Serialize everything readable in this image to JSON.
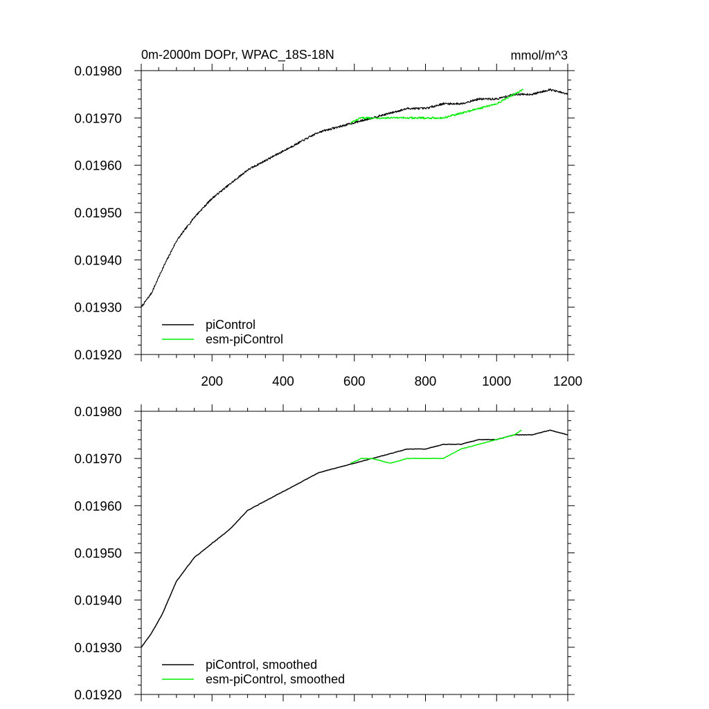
{
  "figure": {
    "title": "0m-2000m DOPr, WPAC_18S-18N",
    "units": "mmol/m^3"
  },
  "colors": {
    "piControl": "#000000",
    "esm": "#00ee00"
  },
  "chart_data": [
    {
      "type": "line",
      "name": "raw",
      "title": "0m-2000m DOPr, WPAC_18S-18N",
      "units_label": "mmol/m^3",
      "xlim": [
        1,
        1200
      ],
      "ylim": [
        0.0192,
        0.0198
      ],
      "x_ticks": [
        200,
        400,
        600,
        800,
        1000,
        1200
      ],
      "x_tick_labels": [
        "200",
        "400",
        "600",
        "800",
        "1000",
        "1200"
      ],
      "y_ticks": [
        0.0192,
        0.0193,
        0.0194,
        0.0195,
        0.0196,
        0.0197,
        0.0198
      ],
      "y_tick_labels": [
        "0.01920",
        "0.01930",
        "0.01940",
        "0.01950",
        "0.01960",
        "0.01970",
        "0.01980"
      ],
      "legend": {
        "position": "bottom-left",
        "entries": [
          "piControl",
          "esm-piControl"
        ]
      },
      "noise": {
        "piControl": 2.2e-06,
        "esm": 2.2e-06
      },
      "series": [
        {
          "name": "piControl",
          "color": "#000000",
          "x": [
            1,
            30,
            60,
            100,
            150,
            200,
            250,
            300,
            350,
            400,
            450,
            500,
            550,
            600,
            650,
            700,
            750,
            800,
            850,
            900,
            950,
            1000,
            1050,
            1100,
            1150,
            1200
          ],
          "y": [
            0.0193,
            0.01933,
            0.01938,
            0.01944,
            0.01949,
            0.01953,
            0.01956,
            0.01959,
            0.01961,
            0.01963,
            0.01965,
            0.01967,
            0.01968,
            0.01969,
            0.0197,
            0.01971,
            0.01972,
            0.01972,
            0.01973,
            0.01973,
            0.01974,
            0.01974,
            0.01975,
            0.01975,
            0.01976,
            0.01975
          ]
        },
        {
          "name": "esm-piControl",
          "color": "#00ee00",
          "x": [
            590,
            620,
            650,
            700,
            750,
            800,
            850,
            900,
            950,
            1000,
            1050,
            1075
          ],
          "y": [
            0.01969,
            0.0197,
            0.0197,
            0.0197,
            0.0197,
            0.0197,
            0.0197,
            0.01971,
            0.01972,
            0.01973,
            0.01975,
            0.01976
          ]
        }
      ]
    },
    {
      "type": "line",
      "name": "smoothed",
      "xlim": [
        1,
        1200
      ],
      "ylim": [
        0.0192,
        0.0198
      ],
      "x_ticks": [
        200,
        400,
        600,
        800,
        1000,
        1200
      ],
      "y_ticks": [
        0.0192,
        0.0193,
        0.0194,
        0.0195,
        0.0196,
        0.0197,
        0.0198
      ],
      "y_tick_labels": [
        "0.01920",
        "0.01930",
        "0.01940",
        "0.01950",
        "0.01960",
        "0.01970",
        "0.01980"
      ],
      "legend": {
        "position": "bottom-left",
        "entries": [
          "piControl, smoothed",
          "esm-piControl, smoothed"
        ]
      },
      "noise": {
        "piControl": 4.5e-07,
        "esm": 3.5e-07
      },
      "series": [
        {
          "name": "piControl, smoothed",
          "color": "#000000",
          "x": [
            1,
            30,
            60,
            100,
            150,
            200,
            250,
            300,
            350,
            400,
            450,
            500,
            550,
            600,
            650,
            700,
            750,
            800,
            850,
            900,
            950,
            1000,
            1050,
            1100,
            1150,
            1200
          ],
          "y": [
            0.0193,
            0.01933,
            0.01937,
            0.01944,
            0.01949,
            0.01952,
            0.01955,
            0.01959,
            0.01961,
            0.01963,
            0.01965,
            0.01967,
            0.01968,
            0.01969,
            0.0197,
            0.01971,
            0.01972,
            0.01972,
            0.01973,
            0.01973,
            0.01974,
            0.01974,
            0.01975,
            0.01975,
            0.01976,
            0.01975
          ]
        },
        {
          "name": "esm-piControl, smoothed",
          "color": "#00ee00",
          "x": [
            590,
            620,
            650,
            700,
            750,
            800,
            850,
            900,
            950,
            1000,
            1050,
            1070
          ],
          "y": [
            0.01969,
            0.0197,
            0.0197,
            0.01969,
            0.0197,
            0.0197,
            0.0197,
            0.01972,
            0.01973,
            0.01974,
            0.01975,
            0.01976
          ]
        }
      ]
    }
  ]
}
